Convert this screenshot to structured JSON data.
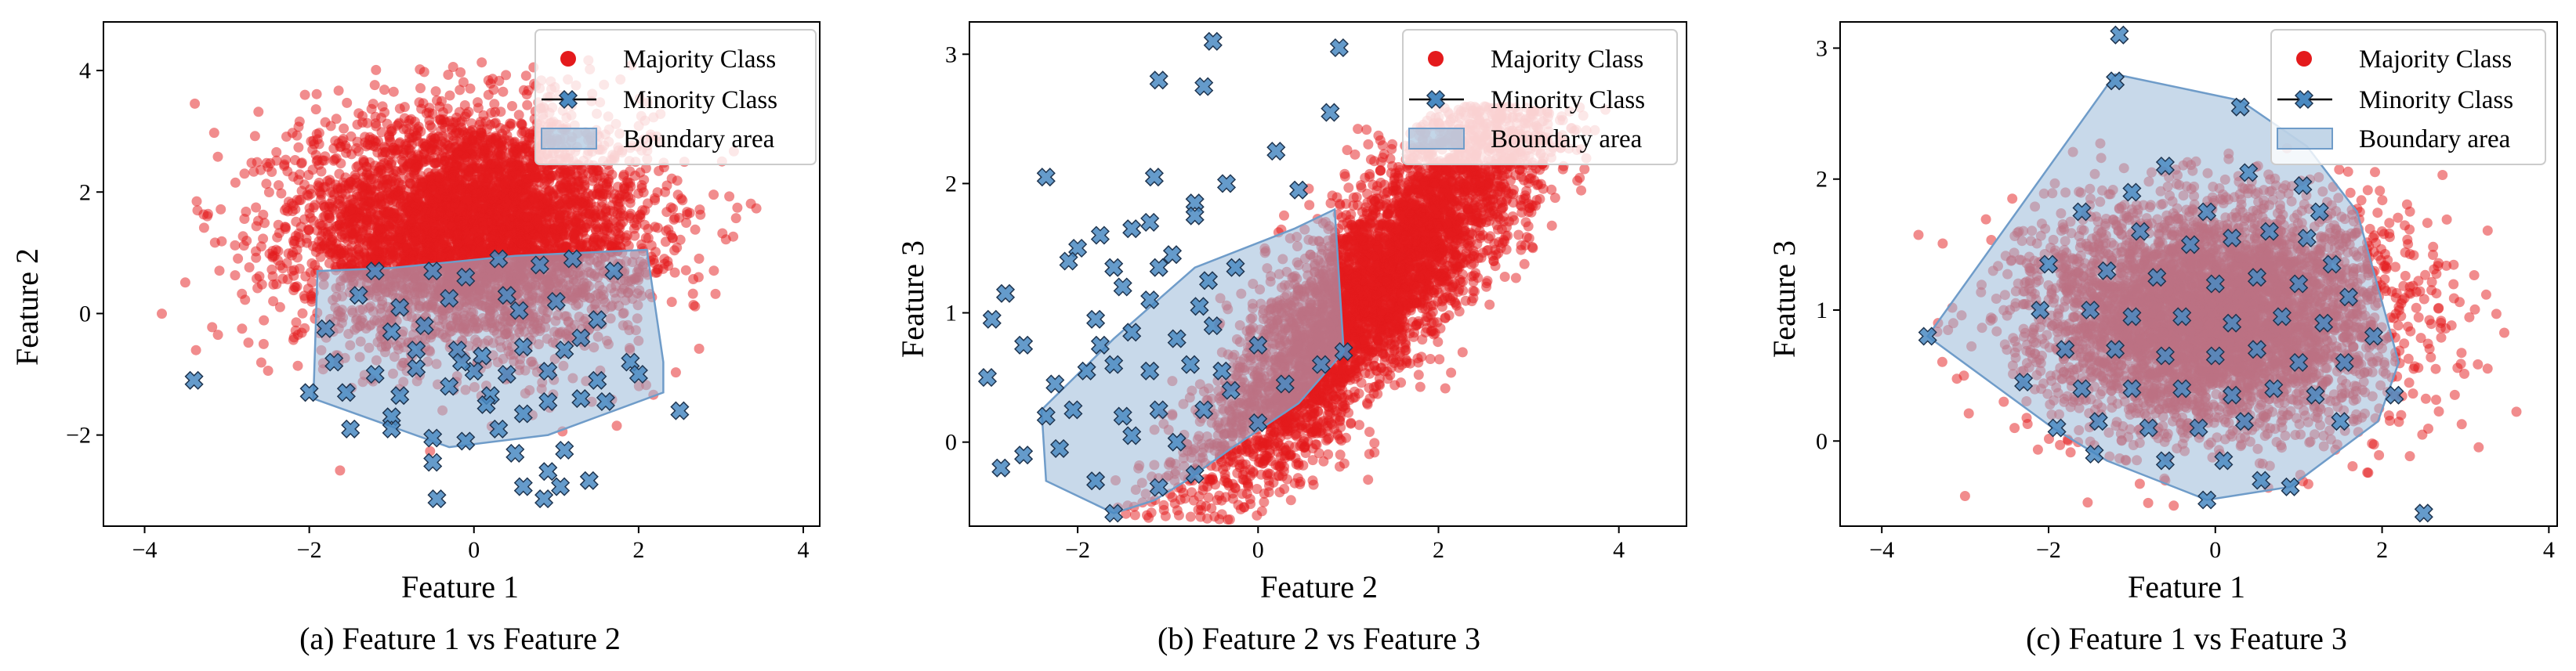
{
  "colors": {
    "majority": "#e41a1c",
    "minority": "#4a8ac2",
    "minority_edge": "#1f3550",
    "boundary_fill": "#9bbad9",
    "boundary_edge": "#6f9cc9"
  },
  "legend": {
    "majority_label": "Majority Class",
    "minority_label": "Minority Class",
    "boundary_label": "Boundary area"
  },
  "chart_data": [
    {
      "type": "scatter",
      "caption": "(a) Feature 1 vs Feature 2",
      "xlabel": "Feature 1",
      "ylabel": "Feature 2",
      "xlim": [
        -4.5,
        4.2
      ],
      "ylim": [
        -3.5,
        4.8
      ],
      "xticks": [
        -4,
        -2,
        0,
        2,
        4
      ],
      "yticks": [
        -2,
        0,
        2,
        4
      ],
      "legend_position": "top-right",
      "majority_cloud": {
        "center": [
          0,
          1.4
        ],
        "spread": [
          1.05,
          0.95
        ],
        "count": 5000,
        "clip": [
          -4.2,
          3.7,
          -2.9,
          4.2
        ],
        "correlation": 0
      },
      "boundary_polygon": [
        [
          -1.9,
          0.7
        ],
        [
          -1.0,
          0.75
        ],
        [
          0.5,
          0.95
        ],
        [
          2.1,
          1.05
        ],
        [
          2.3,
          -0.8
        ],
        [
          2.3,
          -1.3
        ],
        [
          0.9,
          -2.0
        ],
        [
          -0.3,
          -2.2
        ],
        [
          -1.95,
          -1.4
        ]
      ],
      "minority_points": [
        [
          -3.4,
          -1.1
        ],
        [
          2.5,
          -1.6
        ],
        [
          -2.0,
          -1.3
        ],
        [
          -1.5,
          -1.9
        ],
        [
          -1.0,
          -1.7
        ],
        [
          -0.5,
          -2.05
        ],
        [
          -0.1,
          -2.1
        ],
        [
          0.3,
          -1.9
        ],
        [
          0.6,
          -1.65
        ],
        [
          0.9,
          -1.45
        ],
        [
          1.3,
          -1.4
        ],
        [
          0.5,
          -2.3
        ],
        [
          0.9,
          -2.6
        ],
        [
          1.1,
          -2.25
        ],
        [
          -0.5,
          -2.45
        ],
        [
          0.85,
          -3.05
        ],
        [
          -0.45,
          -3.05
        ],
        [
          0.6,
          -2.85
        ],
        [
          1.4,
          -2.75
        ],
        [
          1.05,
          -2.85
        ],
        [
          -1.2,
          0.7
        ],
        [
          -0.5,
          0.7
        ],
        [
          -0.1,
          0.6
        ],
        [
          0.3,
          0.9
        ],
        [
          0.8,
          0.8
        ],
        [
          1.2,
          0.9
        ],
        [
          1.7,
          0.7
        ],
        [
          -1.4,
          0.3
        ],
        [
          -0.9,
          0.1
        ],
        [
          -0.3,
          0.25
        ],
        [
          0.4,
          0.3
        ],
        [
          1.0,
          0.2
        ],
        [
          1.5,
          -0.1
        ],
        [
          -1.0,
          -0.3
        ],
        [
          -0.6,
          -0.2
        ],
        [
          -0.2,
          -0.6
        ],
        [
          0.1,
          -0.7
        ],
        [
          0.6,
          -0.55
        ],
        [
          1.1,
          -0.6
        ],
        [
          -1.7,
          -0.8
        ],
        [
          -1.2,
          -1.0
        ],
        [
          -0.7,
          -0.9
        ],
        [
          0.0,
          -0.95
        ],
        [
          0.4,
          -1.0
        ],
        [
          0.9,
          -0.95
        ],
        [
          1.5,
          -1.1
        ],
        [
          -1.55,
          -1.3
        ],
        [
          -0.9,
          -1.35
        ],
        [
          -0.3,
          -1.2
        ],
        [
          0.2,
          -1.35
        ],
        [
          1.9,
          -0.8
        ],
        [
          2.0,
          -1.0
        ],
        [
          -0.7,
          -0.6
        ],
        [
          -0.15,
          -0.8
        ],
        [
          0.55,
          0.05
        ],
        [
          1.3,
          -0.4
        ],
        [
          -1.8,
          -0.25
        ],
        [
          -1.0,
          -1.9
        ],
        [
          0.15,
          -1.5
        ],
        [
          1.6,
          -1.45
        ]
      ]
    },
    {
      "type": "scatter",
      "caption": "(b) Feature 2 vs Feature 3",
      "xlabel": "Feature 2",
      "ylabel": "Feature 3",
      "xlim": [
        -3.2,
        4.75
      ],
      "ylim": [
        -0.65,
        3.25
      ],
      "xticks": [
        -2,
        0,
        2,
        4
      ],
      "yticks": [
        0,
        1,
        2,
        3
      ],
      "legend_position": "top-right",
      "majority_cloud": {
        "center": [
          1.35,
          1.25
        ],
        "spread": [
          1.05,
          0.42
        ],
        "count": 5000,
        "clip": [
          -2.9,
          4.5,
          -0.6,
          2.6
        ],
        "correlation": 0.88
      },
      "boundary_polygon": [
        [
          -1.6,
          -0.55
        ],
        [
          -2.35,
          -0.3
        ],
        [
          -2.4,
          0.25
        ],
        [
          -1.6,
          0.8
        ],
        [
          -0.7,
          1.35
        ],
        [
          0.4,
          1.65
        ],
        [
          0.85,
          1.8
        ],
        [
          0.95,
          0.7
        ],
        [
          0.45,
          0.3
        ],
        [
          -0.3,
          -0.05
        ],
        [
          -0.8,
          -0.3
        ],
        [
          -1.15,
          -0.45
        ]
      ],
      "minority_points": [
        [
          -0.5,
          3.1
        ],
        [
          0.9,
          3.05
        ],
        [
          -0.6,
          2.75
        ],
        [
          -1.1,
          2.8
        ],
        [
          0.8,
          2.55
        ],
        [
          0.2,
          2.25
        ],
        [
          -2.35,
          2.05
        ],
        [
          -1.15,
          2.05
        ],
        [
          -0.35,
          2.0
        ],
        [
          -0.7,
          1.85
        ],
        [
          0.45,
          1.95
        ],
        [
          -1.4,
          1.65
        ],
        [
          -1.75,
          1.6
        ],
        [
          -2.0,
          1.5
        ],
        [
          -1.2,
          1.7
        ],
        [
          -0.7,
          1.75
        ],
        [
          -0.95,
          1.45
        ],
        [
          -2.1,
          1.4
        ],
        [
          -1.6,
          1.35
        ],
        [
          -1.1,
          1.35
        ],
        [
          -0.55,
          1.25
        ],
        [
          -0.25,
          1.35
        ],
        [
          -1.5,
          1.2
        ],
        [
          -1.2,
          1.1
        ],
        [
          -0.65,
          1.05
        ],
        [
          -2.8,
          1.15
        ],
        [
          -2.95,
          0.95
        ],
        [
          -2.6,
          0.75
        ],
        [
          -1.8,
          0.95
        ],
        [
          -1.4,
          0.85
        ],
        [
          -0.9,
          0.8
        ],
        [
          -0.5,
          0.9
        ],
        [
          0.0,
          0.75
        ],
        [
          -1.6,
          0.6
        ],
        [
          -1.9,
          0.55
        ],
        [
          -1.2,
          0.55
        ],
        [
          -0.75,
          0.6
        ],
        [
          -0.4,
          0.55
        ],
        [
          0.7,
          0.6
        ],
        [
          0.95,
          0.7
        ],
        [
          -3.0,
          0.5
        ],
        [
          -2.25,
          0.45
        ],
        [
          -2.05,
          0.25
        ],
        [
          -1.5,
          0.2
        ],
        [
          -1.1,
          0.25
        ],
        [
          -0.6,
          0.25
        ],
        [
          0.0,
          0.15
        ],
        [
          -2.35,
          0.2
        ],
        [
          -1.4,
          0.05
        ],
        [
          -0.9,
          0.0
        ],
        [
          -2.85,
          -0.2
        ],
        [
          -2.2,
          -0.05
        ],
        [
          -1.8,
          -0.3
        ],
        [
          -0.7,
          -0.25
        ],
        [
          -1.1,
          -0.35
        ],
        [
          -1.6,
          -0.55
        ],
        [
          -2.6,
          -0.1
        ],
        [
          0.3,
          0.45
        ],
        [
          -0.3,
          0.4
        ],
        [
          -1.75,
          0.75
        ]
      ]
    },
    {
      "type": "scatter",
      "caption": "(c) Feature 1 vs Feature 3",
      "xlabel": "Feature 1",
      "ylabel": "Feature 3",
      "xlim": [
        -4.5,
        4.1
      ],
      "ylim": [
        -0.65,
        3.2
      ],
      "xticks": [
        -4,
        -2,
        0,
        2,
        4
      ],
      "yticks": [
        0,
        1,
        2,
        3
      ],
      "legend_position": "top-right",
      "majority_cloud": {
        "center": [
          0,
          0.95
        ],
        "spread": [
          1.05,
          0.42
        ],
        "count": 5000,
        "clip": [
          -4.2,
          3.7,
          -0.6,
          2.3
        ],
        "correlation": 0
      },
      "boundary_polygon": [
        [
          -1.2,
          2.8
        ],
        [
          0.3,
          2.6
        ],
        [
          1.1,
          2.25
        ],
        [
          1.7,
          1.75
        ],
        [
          2.2,
          0.6
        ],
        [
          1.95,
          0.15
        ],
        [
          0.9,
          -0.35
        ],
        [
          -0.1,
          -0.45
        ],
        [
          -1.3,
          -0.15
        ],
        [
          -1.95,
          0.1
        ],
        [
          -3.45,
          0.8
        ]
      ],
      "minority_points": [
        [
          -1.15,
          3.1
        ],
        [
          -1.2,
          2.75
        ],
        [
          0.3,
          2.55
        ],
        [
          -0.6,
          2.1
        ],
        [
          0.4,
          2.05
        ],
        [
          1.05,
          1.95
        ],
        [
          -1.6,
          1.75
        ],
        [
          -0.9,
          1.6
        ],
        [
          -0.3,
          1.5
        ],
        [
          0.2,
          1.55
        ],
        [
          0.65,
          1.6
        ],
        [
          1.1,
          1.55
        ],
        [
          1.4,
          1.35
        ],
        [
          -2.0,
          1.35
        ],
        [
          -1.3,
          1.3
        ],
        [
          -0.7,
          1.25
        ],
        [
          0.0,
          1.2
        ],
        [
          0.5,
          1.25
        ],
        [
          1.0,
          1.2
        ],
        [
          1.6,
          1.1
        ],
        [
          -2.1,
          1.0
        ],
        [
          -1.5,
          1.0
        ],
        [
          -1.0,
          0.95
        ],
        [
          -0.4,
          0.95
        ],
        [
          0.2,
          0.9
        ],
        [
          0.8,
          0.95
        ],
        [
          1.3,
          0.9
        ],
        [
          1.9,
          0.8
        ],
        [
          -1.8,
          0.7
        ],
        [
          -1.2,
          0.7
        ],
        [
          -0.6,
          0.65
        ],
        [
          0.0,
          0.65
        ],
        [
          0.5,
          0.7
        ],
        [
          1.0,
          0.6
        ],
        [
          1.55,
          0.6
        ],
        [
          -2.3,
          0.45
        ],
        [
          -1.6,
          0.4
        ],
        [
          -1.0,
          0.4
        ],
        [
          -0.4,
          0.4
        ],
        [
          0.2,
          0.35
        ],
        [
          0.7,
          0.4
        ],
        [
          1.2,
          0.35
        ],
        [
          2.15,
          0.35
        ],
        [
          -1.4,
          0.15
        ],
        [
          -0.8,
          0.1
        ],
        [
          -0.2,
          0.1
        ],
        [
          0.35,
          0.15
        ],
        [
          1.5,
          0.15
        ],
        [
          -1.9,
          0.1
        ],
        [
          -0.6,
          -0.15
        ],
        [
          0.1,
          -0.15
        ],
        [
          -0.1,
          -0.45
        ],
        [
          0.9,
          -0.35
        ],
        [
          2.5,
          -0.55
        ],
        [
          -3.45,
          0.8
        ],
        [
          -1.0,
          1.9
        ],
        [
          -0.1,
          1.75
        ],
        [
          1.25,
          1.75
        ],
        [
          -1.45,
          -0.1
        ],
        [
          0.55,
          -0.3
        ]
      ]
    }
  ]
}
